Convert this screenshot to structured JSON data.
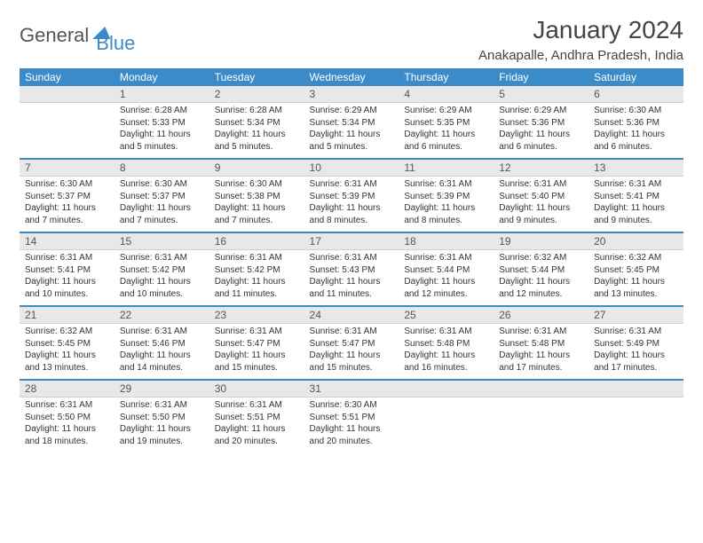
{
  "logo": {
    "text1": "General",
    "text2": "Blue"
  },
  "title": "January 2024",
  "location": "Anakapalle, Andhra Pradesh, India",
  "colors": {
    "accent": "#3b8bc9",
    "headerText": "#ffffff",
    "numrowBg": "#e8e8e8",
    "bodyText": "#333333",
    "background": "#ffffff"
  },
  "dayNames": [
    "Sunday",
    "Monday",
    "Tuesday",
    "Wednesday",
    "Thursday",
    "Friday",
    "Saturday"
  ],
  "weeks": [
    {
      "nums": [
        "",
        "1",
        "2",
        "3",
        "4",
        "5",
        "6"
      ],
      "cells": [
        null,
        {
          "sr": "6:28 AM",
          "ss": "5:33 PM",
          "dl": "11 hours and 5 minutes."
        },
        {
          "sr": "6:28 AM",
          "ss": "5:34 PM",
          "dl": "11 hours and 5 minutes."
        },
        {
          "sr": "6:29 AM",
          "ss": "5:34 PM",
          "dl": "11 hours and 5 minutes."
        },
        {
          "sr": "6:29 AM",
          "ss": "5:35 PM",
          "dl": "11 hours and 6 minutes."
        },
        {
          "sr": "6:29 AM",
          "ss": "5:36 PM",
          "dl": "11 hours and 6 minutes."
        },
        {
          "sr": "6:30 AM",
          "ss": "5:36 PM",
          "dl": "11 hours and 6 minutes."
        }
      ]
    },
    {
      "nums": [
        "7",
        "8",
        "9",
        "10",
        "11",
        "12",
        "13"
      ],
      "cells": [
        {
          "sr": "6:30 AM",
          "ss": "5:37 PM",
          "dl": "11 hours and 7 minutes."
        },
        {
          "sr": "6:30 AM",
          "ss": "5:37 PM",
          "dl": "11 hours and 7 minutes."
        },
        {
          "sr": "6:30 AM",
          "ss": "5:38 PM",
          "dl": "11 hours and 7 minutes."
        },
        {
          "sr": "6:31 AM",
          "ss": "5:39 PM",
          "dl": "11 hours and 8 minutes."
        },
        {
          "sr": "6:31 AM",
          "ss": "5:39 PM",
          "dl": "11 hours and 8 minutes."
        },
        {
          "sr": "6:31 AM",
          "ss": "5:40 PM",
          "dl": "11 hours and 9 minutes."
        },
        {
          "sr": "6:31 AM",
          "ss": "5:41 PM",
          "dl": "11 hours and 9 minutes."
        }
      ]
    },
    {
      "nums": [
        "14",
        "15",
        "16",
        "17",
        "18",
        "19",
        "20"
      ],
      "cells": [
        {
          "sr": "6:31 AM",
          "ss": "5:41 PM",
          "dl": "11 hours and 10 minutes."
        },
        {
          "sr": "6:31 AM",
          "ss": "5:42 PM",
          "dl": "11 hours and 10 minutes."
        },
        {
          "sr": "6:31 AM",
          "ss": "5:42 PM",
          "dl": "11 hours and 11 minutes."
        },
        {
          "sr": "6:31 AM",
          "ss": "5:43 PM",
          "dl": "11 hours and 11 minutes."
        },
        {
          "sr": "6:31 AM",
          "ss": "5:44 PM",
          "dl": "11 hours and 12 minutes."
        },
        {
          "sr": "6:32 AM",
          "ss": "5:44 PM",
          "dl": "11 hours and 12 minutes."
        },
        {
          "sr": "6:32 AM",
          "ss": "5:45 PM",
          "dl": "11 hours and 13 minutes."
        }
      ]
    },
    {
      "nums": [
        "21",
        "22",
        "23",
        "24",
        "25",
        "26",
        "27"
      ],
      "cells": [
        {
          "sr": "6:32 AM",
          "ss": "5:45 PM",
          "dl": "11 hours and 13 minutes."
        },
        {
          "sr": "6:31 AM",
          "ss": "5:46 PM",
          "dl": "11 hours and 14 minutes."
        },
        {
          "sr": "6:31 AM",
          "ss": "5:47 PM",
          "dl": "11 hours and 15 minutes."
        },
        {
          "sr": "6:31 AM",
          "ss": "5:47 PM",
          "dl": "11 hours and 15 minutes."
        },
        {
          "sr": "6:31 AM",
          "ss": "5:48 PM",
          "dl": "11 hours and 16 minutes."
        },
        {
          "sr": "6:31 AM",
          "ss": "5:48 PM",
          "dl": "11 hours and 17 minutes."
        },
        {
          "sr": "6:31 AM",
          "ss": "5:49 PM",
          "dl": "11 hours and 17 minutes."
        }
      ]
    },
    {
      "nums": [
        "28",
        "29",
        "30",
        "31",
        "",
        "",
        ""
      ],
      "cells": [
        {
          "sr": "6:31 AM",
          "ss": "5:50 PM",
          "dl": "11 hours and 18 minutes."
        },
        {
          "sr": "6:31 AM",
          "ss": "5:50 PM",
          "dl": "11 hours and 19 minutes."
        },
        {
          "sr": "6:31 AM",
          "ss": "5:51 PM",
          "dl": "11 hours and 20 minutes."
        },
        {
          "sr": "6:30 AM",
          "ss": "5:51 PM",
          "dl": "11 hours and 20 minutes."
        },
        null,
        null,
        null
      ]
    }
  ],
  "labels": {
    "sunrise": "Sunrise:",
    "sunset": "Sunset:",
    "daylight": "Daylight:"
  }
}
